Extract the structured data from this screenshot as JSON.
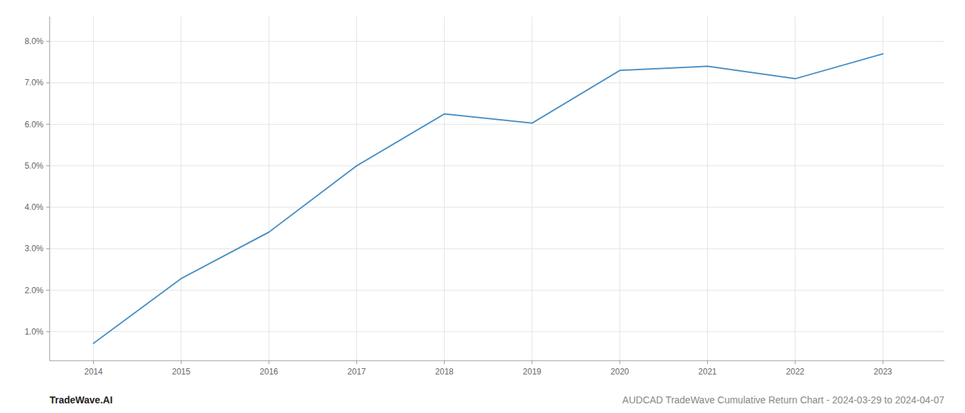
{
  "chart_data": {
    "type": "line",
    "x": [
      2014,
      2015,
      2016,
      2017,
      2018,
      2019,
      2020,
      2021,
      2022,
      2023
    ],
    "values": [
      0.0072,
      0.0228,
      0.034,
      0.05,
      0.0625,
      0.0603,
      0.073,
      0.074,
      0.071,
      0.077
    ],
    "color": "#4a90c4",
    "xlim": [
      2013.5,
      2023.7
    ],
    "ylim": [
      0.003,
      0.086
    ],
    "xticks": [
      2014,
      2015,
      2016,
      2017,
      2018,
      2019,
      2020,
      2021,
      2022,
      2023
    ],
    "yticks": [
      {
        "value": 0.01,
        "label": "1.0%"
      },
      {
        "value": 0.02,
        "label": "2.0%"
      },
      {
        "value": 0.03,
        "label": "3.0%"
      },
      {
        "value": 0.04,
        "label": "4.0%"
      },
      {
        "value": 0.05,
        "label": "5.0%"
      },
      {
        "value": 0.06,
        "label": "6.0%"
      },
      {
        "value": 0.07,
        "label": "7.0%"
      },
      {
        "value": 0.08,
        "label": "8.0%"
      }
    ],
    "grid": true,
    "annotations": [
      "TradeWave.AI",
      "AUDCAD TradeWave Cumulative Return Chart - 2024-03-29 to 2024-04-07"
    ]
  }
}
